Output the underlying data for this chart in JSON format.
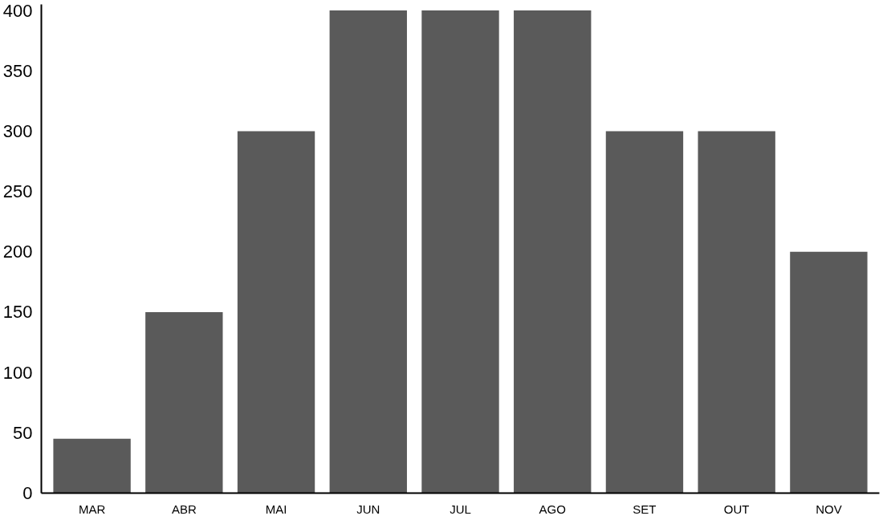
{
  "chart_data": {
    "type": "bar",
    "categories": [
      "MAR",
      "ABR",
      "MAI",
      "JUN",
      "JUL",
      "AGO",
      "SET",
      "OUT",
      "NOV"
    ],
    "values": [
      45,
      150,
      300,
      400,
      400,
      400,
      300,
      300,
      200
    ],
    "color": "#5a5a5a",
    "ylim": [
      0,
      405
    ],
    "yticks": [
      0,
      50,
      100,
      150,
      200,
      250,
      300,
      350,
      400
    ],
    "grid": false
  }
}
